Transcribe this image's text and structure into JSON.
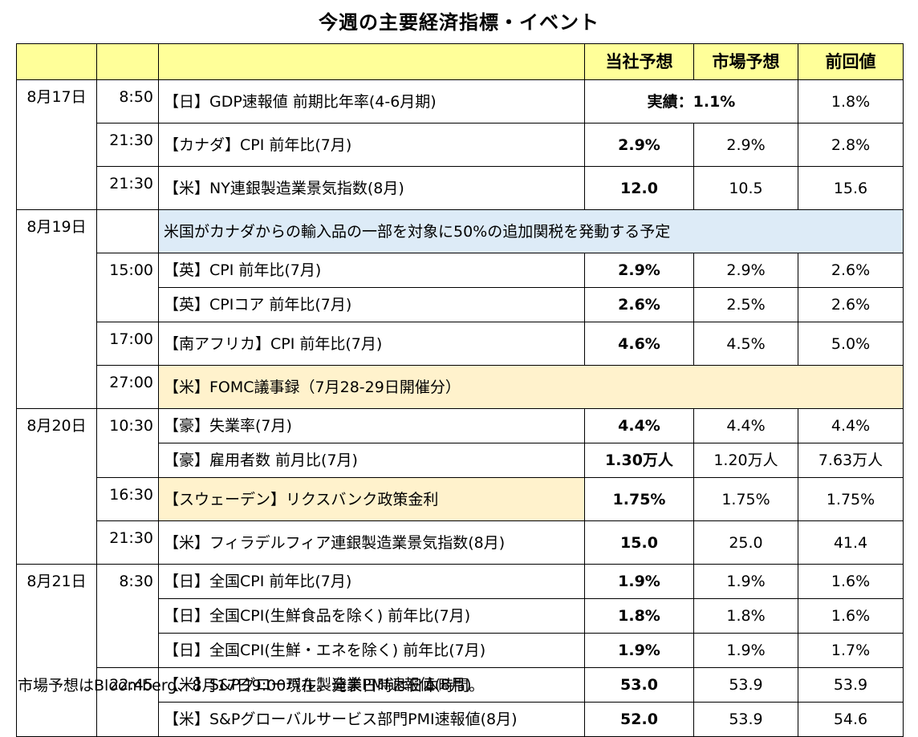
{
  "title": "今週の主要経済指標・イベント",
  "header": {
    "col_company": "当社予想",
    "col_market": "市場予想",
    "col_prev": "前回値"
  },
  "rows": {
    "r1": {
      "date": "8月17日",
      "time": "8:50",
      "event": "【日】GDP速報値 前期比年率(4-6月期)",
      "actual": "実績：1.1%",
      "prev": "1.8%"
    },
    "r2": {
      "time": "21:30",
      "event": "【カナダ】CPI 前年比(7月)",
      "company": "2.9%",
      "market": "2.9%",
      "prev": "2.8%"
    },
    "r3": {
      "time": "21:30",
      "event": "【米】NY連銀製造業景気指数(8月)",
      "company": "12.0",
      "market": "10.5",
      "prev": "15.6"
    },
    "r4": {
      "date": "8月19日",
      "note": "米国がカナダからの輸入品の一部を対象に50%の追加関税を発動する予定"
    },
    "r5": {
      "time": "15:00",
      "event": "【英】CPI 前年比(7月)",
      "company": "2.9%",
      "market": "2.9%",
      "prev": "2.6%"
    },
    "r6": {
      "event": "【英】CPIコア 前年比(7月)",
      "company": "2.6%",
      "market": "2.5%",
      "prev": "2.6%"
    },
    "r7": {
      "time": "17:00",
      "event": "【南アフリカ】CPI 前年比(7月)",
      "company": "4.6%",
      "market": "4.5%",
      "prev": "5.0%"
    },
    "r8": {
      "time": "27:00",
      "note": "【米】FOMC議事録（7月28-29日開催分）"
    },
    "r9": {
      "date": "8月20日",
      "time": "10:30",
      "event": "【豪】失業率(7月)",
      "company": "4.4%",
      "market": "4.4%",
      "prev": "4.4%"
    },
    "r10": {
      "event": "【豪】雇用者数 前月比(7月)",
      "company": "1.30万人",
      "market": "1.20万人",
      "prev": "7.63万人"
    },
    "r11": {
      "time": "16:30",
      "event": "【スウェーデン】リクスバンク政策金利",
      "company": "1.75%",
      "market": "1.75%",
      "prev": "1.75%"
    },
    "r12": {
      "time": "21:30",
      "event": "【米】フィラデルフィア連銀製造業景気指数(8月)",
      "company": "15.0",
      "market": "25.0",
      "prev": "41.4"
    },
    "r13": {
      "date": "8月21日",
      "time": "8:30",
      "event": "【日】全国CPI 前年比(7月)",
      "company": "1.9%",
      "market": "1.9%",
      "prev": "1.6%"
    },
    "r14": {
      "event": "【日】全国CPI(生鮮食品を除く) 前年比(7月)",
      "company": "1.8%",
      "market": "1.8%",
      "prev": "1.6%"
    },
    "r15": {
      "event": "【日】全国CPI(生鮮・エネを除く) 前年比(7月)",
      "company": "1.9%",
      "market": "1.9%",
      "prev": "1.7%"
    },
    "r16": {
      "time": "22:45",
      "event": "【米】S&Pグローバル製造業PMI速報値(8月)",
      "company": "53.0",
      "market": "53.9",
      "prev": "53.9"
    },
    "r17": {
      "event": "【米】S&Pグローバルサービス部門PMI速報値(8月)",
      "company": "52.0",
      "market": "53.9",
      "prev": "54.6"
    }
  },
  "footnote": "市場予想はBloomberg、8月17日9:00現在。発表日時は日本時間。",
  "colors": {
    "header_bg": "#ffff99",
    "note_blue_bg": "#ddebf7",
    "note_orange_bg": "#fff2cc"
  }
}
